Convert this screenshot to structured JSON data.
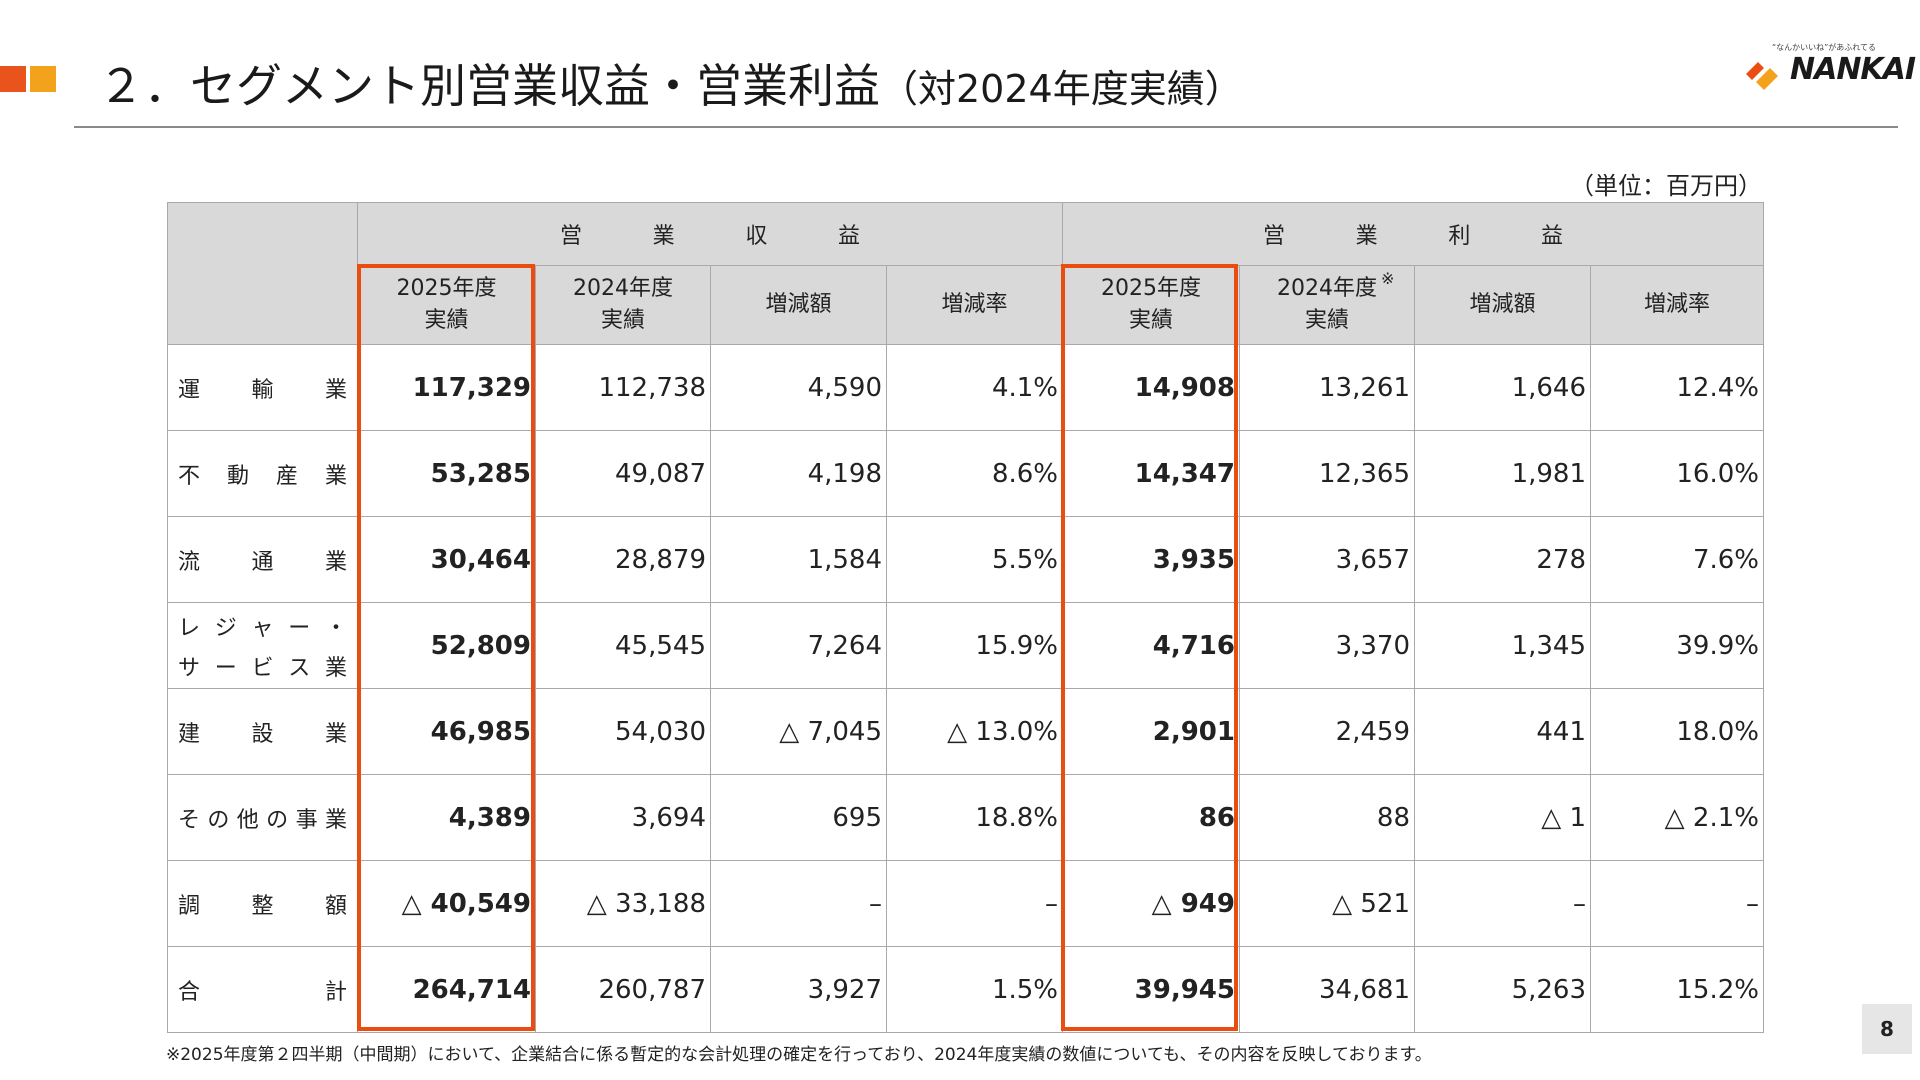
{
  "slide": {
    "title": "２．セグメント別営業収益・営業利益",
    "subtitle": "（対2024年度実績）",
    "unit": "（単位：百万円）",
    "page_number": "8",
    "footnote": "※2025年度第２四半期（中間期）において、企業結合に係る暫定的な会計処理の確定を行っており、2024年度実績の数値についても、その内容を反映しております。"
  },
  "logo": {
    "tagline": "“なんかいいね”があふれてる",
    "brand": "NANKAI",
    "colors": {
      "orange": "#ea4d10",
      "yellow": "#f3a31b"
    }
  },
  "accent_colors": {
    "primary": "#e8541b",
    "secondary": "#f3a31b",
    "highlight": "#ea4d10"
  },
  "table": {
    "groups": [
      [
        "営",
        "業",
        "収",
        "益"
      ],
      [
        "営",
        "業",
        "利",
        "益"
      ]
    ],
    "subheaders": [
      [
        "2025年度",
        "実績"
      ],
      [
        "2024年度",
        "実績"
      ],
      [
        "増減額"
      ],
      [
        "増減率"
      ],
      [
        "2025年度",
        "実績"
      ],
      [
        "2024年度",
        "実績"
      ],
      [
        "増減額"
      ],
      [
        "増減率"
      ]
    ],
    "note_mark": "※",
    "rows": [
      {
        "label_lines": [
          [
            "運",
            "輸",
            "業"
          ]
        ],
        "values": [
          "117,329",
          "112,738",
          "4,590",
          "4.1%",
          "14,908",
          "13,261",
          "1,646",
          "12.4%"
        ]
      },
      {
        "label_lines": [
          [
            "不",
            "動",
            "産",
            "業"
          ]
        ],
        "values": [
          "53,285",
          "49,087",
          "4,198",
          "8.6%",
          "14,347",
          "12,365",
          "1,981",
          "16.0%"
        ]
      },
      {
        "label_lines": [
          [
            "流",
            "通",
            "業"
          ]
        ],
        "values": [
          "30,464",
          "28,879",
          "1,584",
          "5.5%",
          "3,935",
          "3,657",
          "278",
          "7.6%"
        ]
      },
      {
        "label_lines": [
          [
            "レ",
            "ジ",
            "ャ",
            "ー",
            "・"
          ],
          [
            "サ",
            "ー",
            "ビ",
            "ス",
            "業"
          ]
        ],
        "values": [
          "52,809",
          "45,545",
          "7,264",
          "15.9%",
          "4,716",
          "3,370",
          "1,345",
          "39.9%"
        ]
      },
      {
        "label_lines": [
          [
            "建",
            "設",
            "業"
          ]
        ],
        "values": [
          "46,985",
          "54,030",
          "△ 7,045",
          "△ 13.0%",
          "2,901",
          "2,459",
          "441",
          "18.0%"
        ]
      },
      {
        "label_lines": [
          [
            "そ",
            "の",
            "他",
            "の",
            "事",
            "業"
          ]
        ],
        "values": [
          "4,389",
          "3,694",
          "695",
          "18.8%",
          "86",
          "88",
          "△ 1",
          "△ 2.1%"
        ]
      },
      {
        "label_lines": [
          [
            "調",
            "整",
            "額"
          ]
        ],
        "values": [
          "△ 40,549",
          "△ 33,188",
          "–",
          "–",
          "△ 949",
          "△ 521",
          "–",
          "–"
        ]
      },
      {
        "label_lines": [
          [
            "合",
            "計"
          ]
        ],
        "values": [
          "264,714",
          "260,787",
          "3,927",
          "1.5%",
          "39,945",
          "34,681",
          "5,263",
          "15.2%"
        ]
      }
    ]
  }
}
